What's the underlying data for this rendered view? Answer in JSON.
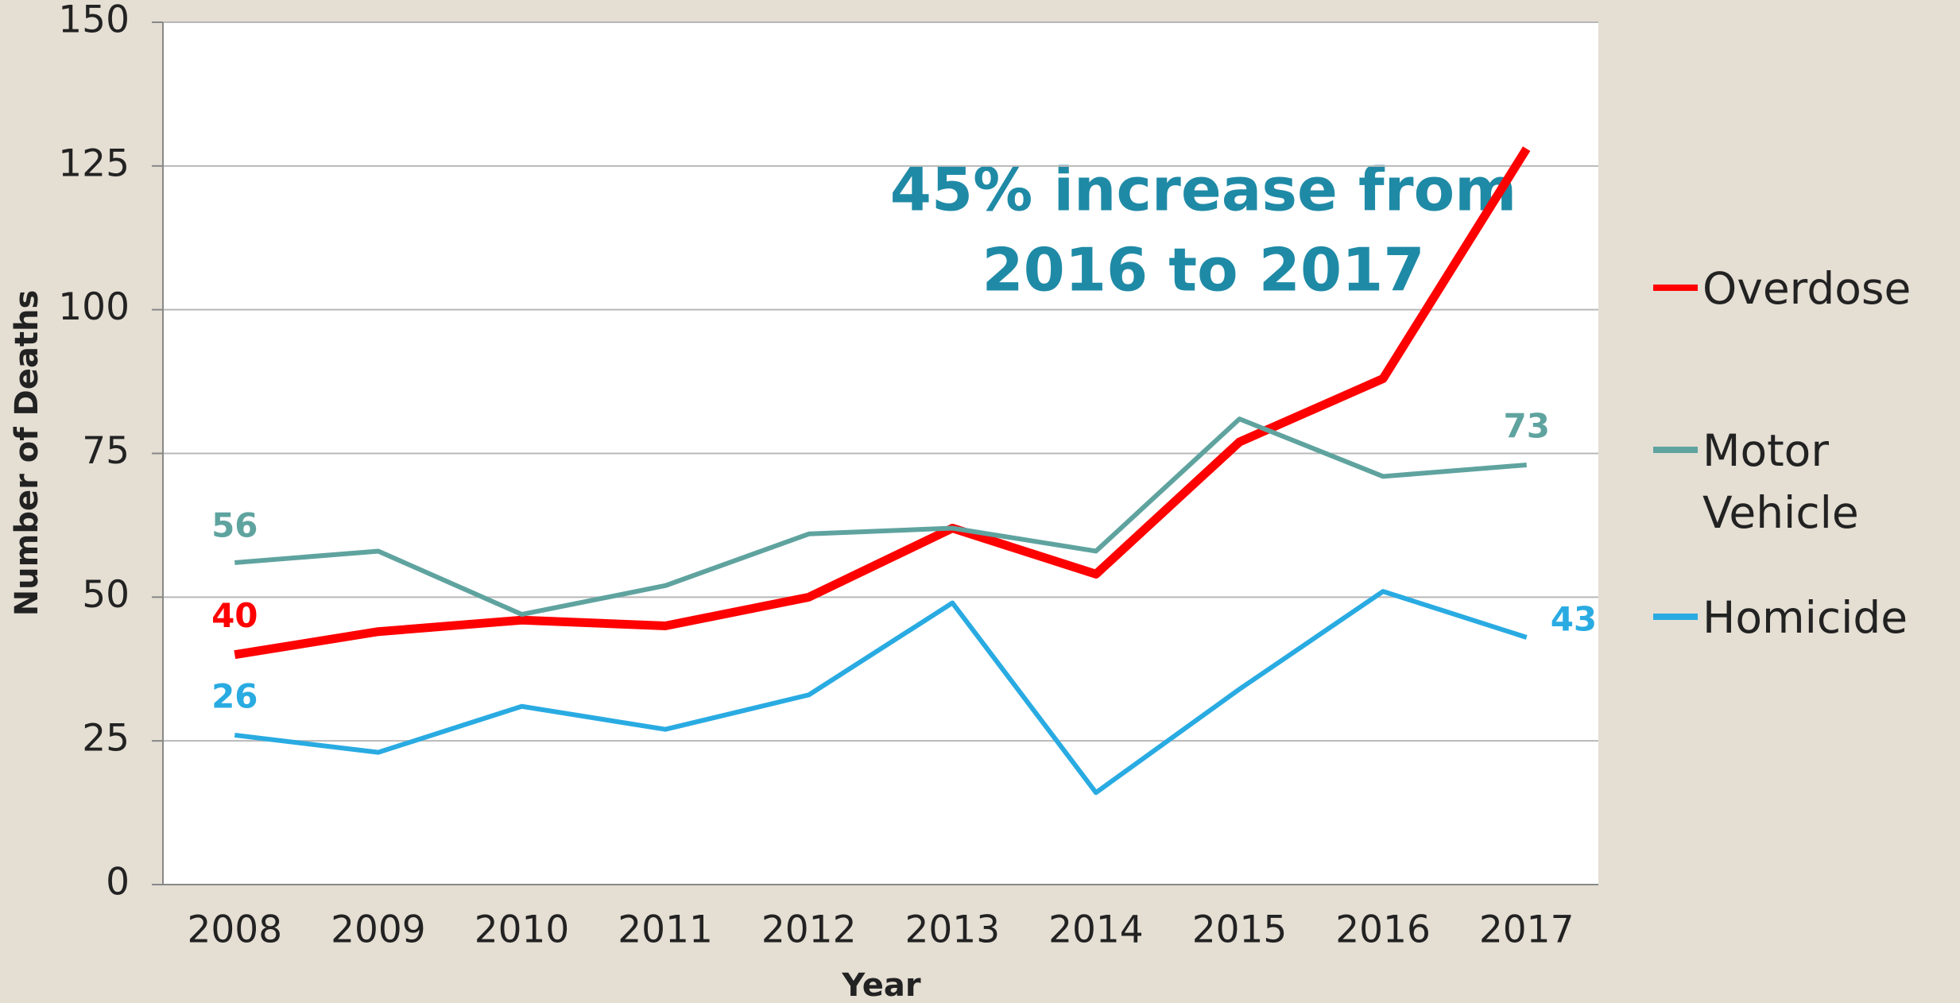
{
  "chart_data": {
    "type": "line",
    "annotation": [
      "45% increase from",
      "2016 to 2017"
    ],
    "x_label": "Year",
    "y_label": "Number of Deaths",
    "categories": [
      "2008",
      "2009",
      "2010",
      "2011",
      "2012",
      "2013",
      "2014",
      "2015",
      "2016",
      "2017"
    ],
    "series": [
      {
        "name": "Overdose",
        "color": "#ff0000",
        "values": [
          40,
          44,
          46,
          45,
          50,
          62,
          54,
          77,
          88,
          128
        ]
      },
      {
        "name": "Motor Vehicle",
        "color": "#5fa39f",
        "values": [
          56,
          58,
          47,
          52,
          61,
          62,
          58,
          81,
          71,
          73
        ]
      },
      {
        "name": "Homicide",
        "color": "#29abe2",
        "values": [
          26,
          23,
          31,
          27,
          33,
          49,
          16,
          34,
          51,
          43
        ]
      }
    ],
    "ylim": [
      0,
      150
    ],
    "yticks": [
      0,
      25,
      50,
      75,
      100,
      125,
      150
    ],
    "grid": true,
    "legend": "right"
  }
}
